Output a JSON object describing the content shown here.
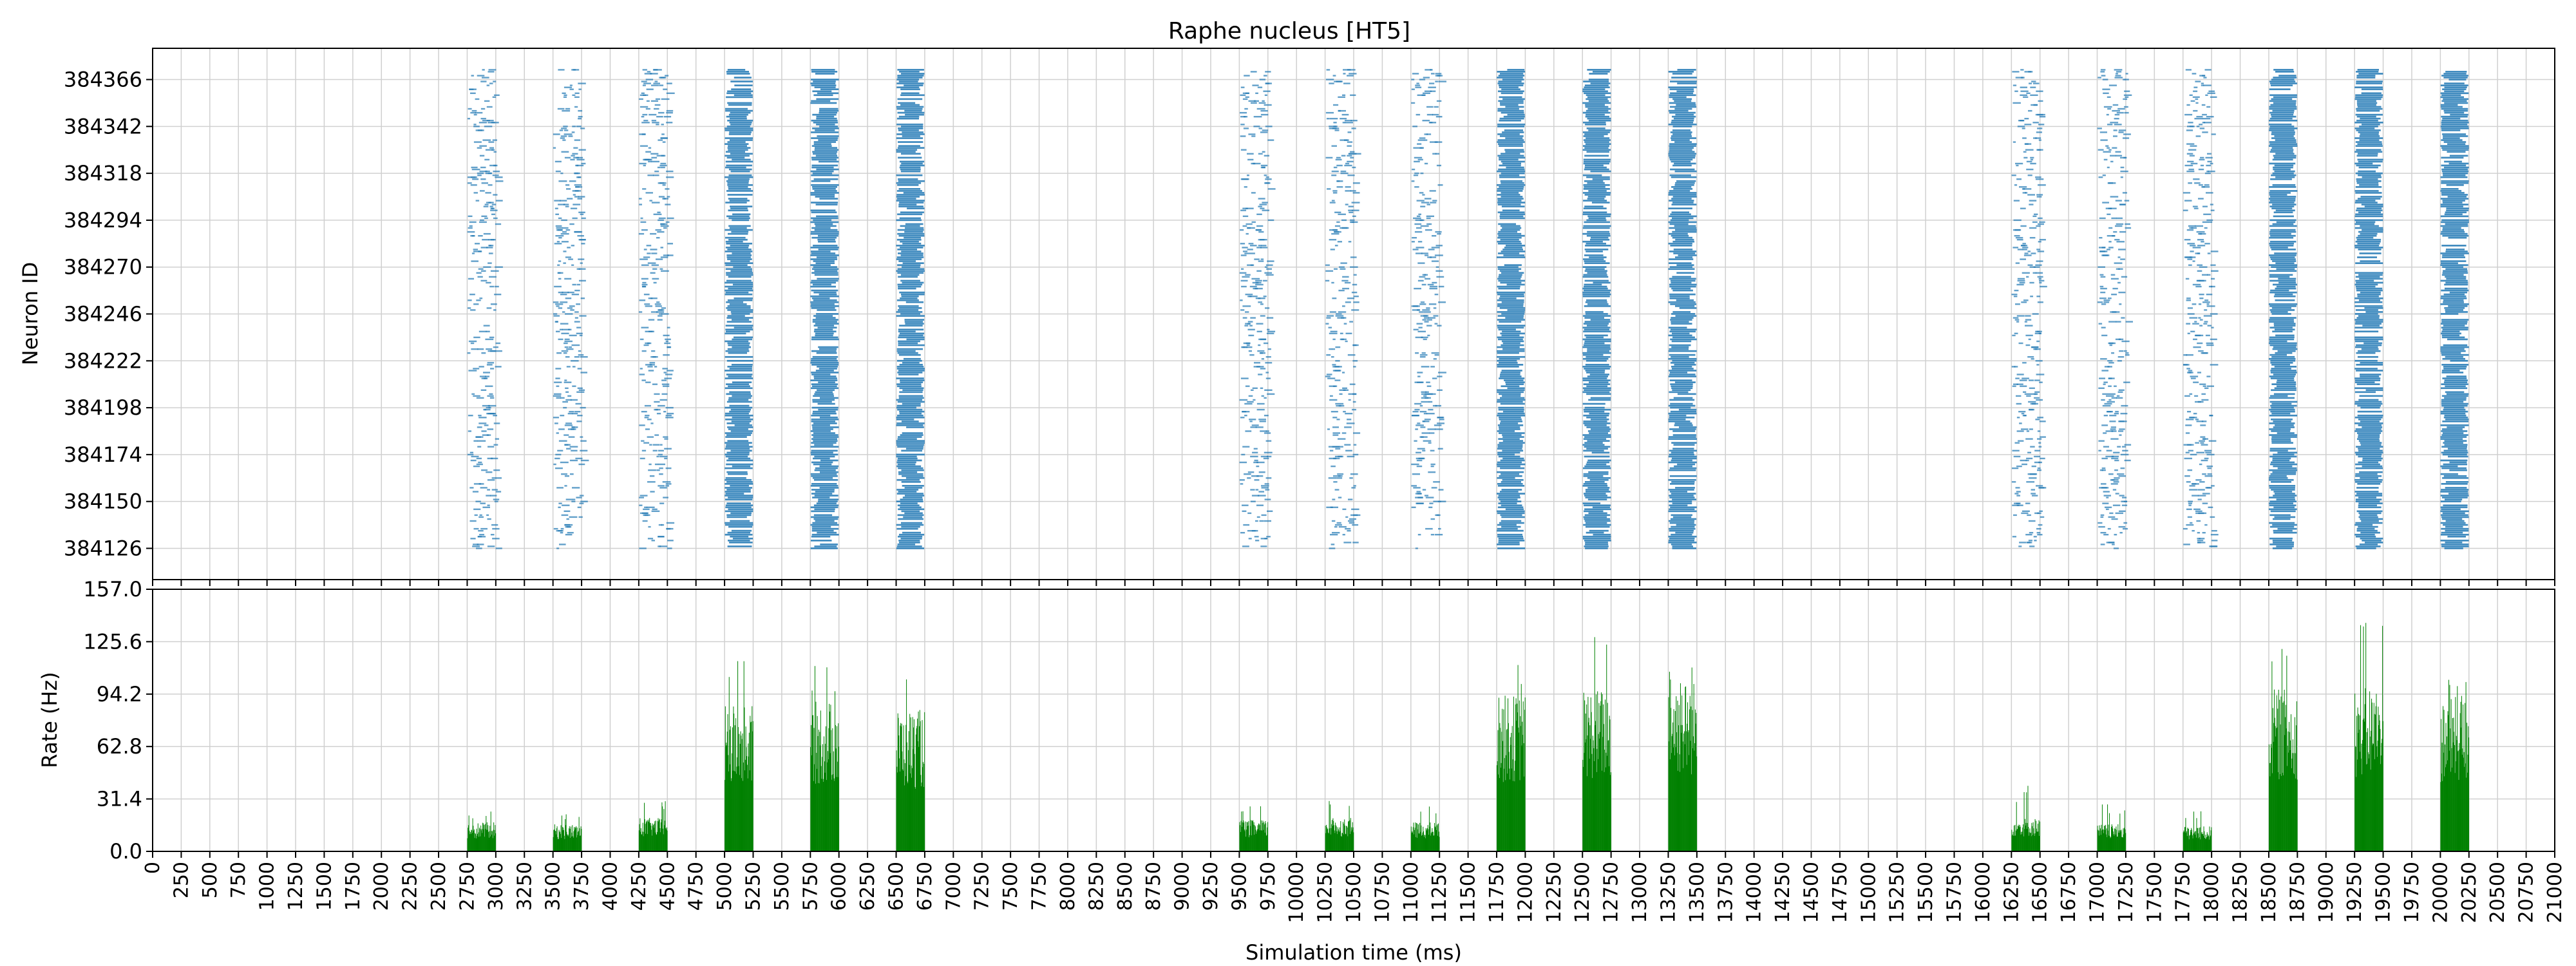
{
  "chart_data": [
    {
      "type": "scatter",
      "subtype": "raster",
      "title": "Raphe nucleus [HT5]",
      "xlabel": "",
      "ylabel": "Neuron ID",
      "xlim": [
        0,
        21000
      ],
      "ylim": [
        384110,
        384382
      ],
      "yticks": [
        "384126",
        "384150",
        "384174",
        "384198",
        "384222",
        "384246",
        "384270",
        "384294",
        "384318",
        "384342",
        "384366"
      ],
      "grid": true,
      "marker_color": "#1f77b4",
      "neuron_range": [
        384126,
        384371
      ],
      "bursts": [
        {
          "start": 2750,
          "end": 3000,
          "density": "sparse"
        },
        {
          "start": 3500,
          "end": 3750,
          "density": "sparse"
        },
        {
          "start": 4250,
          "end": 4500,
          "density": "sparse"
        },
        {
          "start": 5000,
          "end": 5250,
          "density": "dense"
        },
        {
          "start": 5750,
          "end": 6000,
          "density": "dense"
        },
        {
          "start": 6500,
          "end": 6750,
          "density": "dense"
        },
        {
          "start": 9500,
          "end": 9750,
          "density": "sparse"
        },
        {
          "start": 10250,
          "end": 10500,
          "density": "sparse"
        },
        {
          "start": 11000,
          "end": 11250,
          "density": "sparse"
        },
        {
          "start": 11750,
          "end": 12000,
          "density": "dense"
        },
        {
          "start": 12500,
          "end": 12750,
          "density": "dense"
        },
        {
          "start": 13250,
          "end": 13500,
          "density": "dense"
        },
        {
          "start": 16250,
          "end": 16500,
          "density": "sparse"
        },
        {
          "start": 17000,
          "end": 17250,
          "density": "sparse"
        },
        {
          "start": 17750,
          "end": 18000,
          "density": "sparse"
        },
        {
          "start": 18500,
          "end": 18750,
          "density": "dense"
        },
        {
          "start": 19250,
          "end": 19500,
          "density": "dense"
        },
        {
          "start": 20000,
          "end": 20250,
          "density": "dense"
        }
      ]
    },
    {
      "type": "bar",
      "subtype": "rate-histogram",
      "title": "",
      "xlabel": "Simulation time (ms)",
      "ylabel": "Rate (Hz)",
      "xlim": [
        0,
        21000
      ],
      "ylim": [
        0,
        157
      ],
      "yticks": [
        "0.0",
        "31.4",
        "62.8",
        "94.2",
        "125.6",
        "157.0"
      ],
      "xticks": [
        "0",
        "250",
        "500",
        "750",
        "1000",
        "1250",
        "1500",
        "1750",
        "2000",
        "2250",
        "2500",
        "2750",
        "3000",
        "3250",
        "3500",
        "3750",
        "4000",
        "4250",
        "4500",
        "4750",
        "5000",
        "5250",
        "5500",
        "5750",
        "6000",
        "6250",
        "6500",
        "6750",
        "7000",
        "7250",
        "7500",
        "7750",
        "8000",
        "8250",
        "8500",
        "8750",
        "9000",
        "9250",
        "9500",
        "9750",
        "10000",
        "10250",
        "10500",
        "10750",
        "11000",
        "11250",
        "11500",
        "11750",
        "12000",
        "12250",
        "12500",
        "12750",
        "13000",
        "13250",
        "13500",
        "13750",
        "14000",
        "14250",
        "14500",
        "14750",
        "15000",
        "15250",
        "15500",
        "15750",
        "16000",
        "16250",
        "16500",
        "16750",
        "17000",
        "17250",
        "17500",
        "17750",
        "18000",
        "18250",
        "18500",
        "18750",
        "19000",
        "19250",
        "19500",
        "19750",
        "20000",
        "20250",
        "20500",
        "20750",
        "21000"
      ],
      "grid": true,
      "bar_color": "#008000",
      "bursts": [
        {
          "start": 2750,
          "end": 3000,
          "mean_rate": 14,
          "peak_rate": 24
        },
        {
          "start": 3500,
          "end": 3750,
          "mean_rate": 13,
          "peak_rate": 24
        },
        {
          "start": 4250,
          "end": 4500,
          "mean_rate": 16,
          "peak_rate": 32
        },
        {
          "start": 5000,
          "end": 5250,
          "mean_rate": 70,
          "peak_rate": 116
        },
        {
          "start": 5750,
          "end": 6000,
          "mean_rate": 72,
          "peak_rate": 112
        },
        {
          "start": 6500,
          "end": 6750,
          "mean_rate": 68,
          "peak_rate": 104
        },
        {
          "start": 9500,
          "end": 9750,
          "mean_rate": 15,
          "peak_rate": 28
        },
        {
          "start": 10250,
          "end": 10500,
          "mean_rate": 16,
          "peak_rate": 34
        },
        {
          "start": 11000,
          "end": 11250,
          "mean_rate": 14,
          "peak_rate": 27
        },
        {
          "start": 11750,
          "end": 12000,
          "mean_rate": 75,
          "peak_rate": 115
        },
        {
          "start": 12500,
          "end": 12750,
          "mean_rate": 78,
          "peak_rate": 133
        },
        {
          "start": 13250,
          "end": 13500,
          "mean_rate": 82,
          "peak_rate": 113
        },
        {
          "start": 16250,
          "end": 16500,
          "mean_rate": 16,
          "peak_rate": 40
        },
        {
          "start": 17000,
          "end": 17250,
          "mean_rate": 13,
          "peak_rate": 30
        },
        {
          "start": 17750,
          "end": 18000,
          "mean_rate": 12,
          "peak_rate": 25
        },
        {
          "start": 18500,
          "end": 18750,
          "mean_rate": 78,
          "peak_rate": 128
        },
        {
          "start": 19250,
          "end": 19500,
          "mean_rate": 80,
          "peak_rate": 137
        },
        {
          "start": 20000,
          "end": 20250,
          "mean_rate": 74,
          "peak_rate": 104
        }
      ]
    }
  ]
}
